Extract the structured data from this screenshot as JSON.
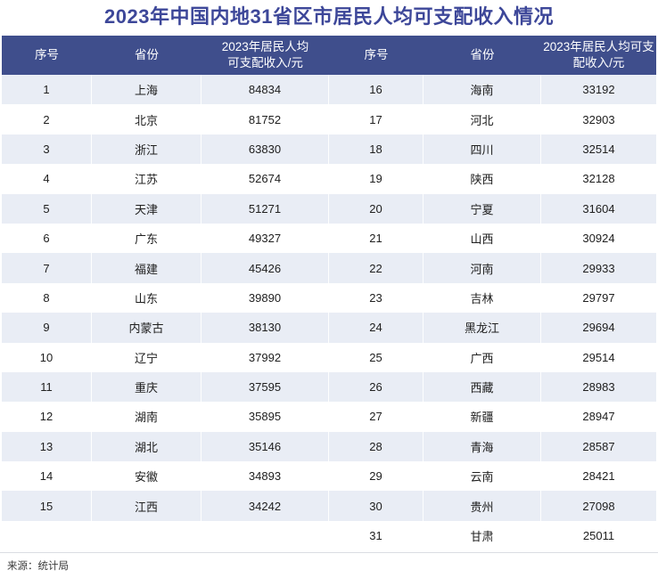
{
  "page": {
    "title": "2023年中国内地31省区市居民人均可支配收入情况"
  },
  "table_headers": {
    "col_rank": "序号",
    "col_province": "省份",
    "col_income_left": "2023年居民人均\n可支配收入/元",
    "col_income_right": "2023年居民人均可支\n配收入/元"
  },
  "footer": {
    "source": "来源：统计局"
  },
  "colors": {
    "title_text": "#3d4799",
    "header_bg": "#3f4e8c",
    "header_text": "#ffffff",
    "row_alt_bg": "#e9edf5",
    "row_bg": "#ffffff",
    "cell_text": "#202020",
    "divider": "#dadde2"
  },
  "chart_data": {
    "type": "table",
    "title": "2023年中国内地31省区市居民人均可支配收入情况",
    "columns": [
      "序号",
      "省份",
      "2023年居民人均可支配收入/元"
    ],
    "layout": "two-column table, ranks 1-15 left, ranks 16-31 right, alternating shaded bands",
    "source": "来源：统计局",
    "records": [
      {
        "rank": "1",
        "province": "上海",
        "income": "84834"
      },
      {
        "rank": "2",
        "province": "北京",
        "income": "81752"
      },
      {
        "rank": "3",
        "province": "浙江",
        "income": "63830"
      },
      {
        "rank": "4",
        "province": "江苏",
        "income": "52674"
      },
      {
        "rank": "5",
        "province": "天津",
        "income": "51271"
      },
      {
        "rank": "6",
        "province": "广东",
        "income": "49327"
      },
      {
        "rank": "7",
        "province": "福建",
        "income": "45426"
      },
      {
        "rank": "8",
        "province": "山东",
        "income": "39890"
      },
      {
        "rank": "9",
        "province": "内蒙古",
        "income": "38130"
      },
      {
        "rank": "10",
        "province": "辽宁",
        "income": "37992"
      },
      {
        "rank": "11",
        "province": "重庆",
        "income": "37595"
      },
      {
        "rank": "12",
        "province": "湖南",
        "income": "35895"
      },
      {
        "rank": "13",
        "province": "湖北",
        "income": "35146"
      },
      {
        "rank": "14",
        "province": "安徽",
        "income": "34893"
      },
      {
        "rank": "15",
        "province": "江西",
        "income": "34242"
      },
      {
        "rank": "16",
        "province": "海南",
        "income": "33192"
      },
      {
        "rank": "17",
        "province": "河北",
        "income": "32903"
      },
      {
        "rank": "18",
        "province": "四川",
        "income": "32514"
      },
      {
        "rank": "19",
        "province": "陕西",
        "income": "32128"
      },
      {
        "rank": "20",
        "province": "宁夏",
        "income": "31604"
      },
      {
        "rank": "21",
        "province": "山西",
        "income": "30924"
      },
      {
        "rank": "22",
        "province": "河南",
        "income": "29933"
      },
      {
        "rank": "23",
        "province": "吉林",
        "income": "29797"
      },
      {
        "rank": "24",
        "province": "黑龙江",
        "income": "29694"
      },
      {
        "rank": "25",
        "province": "广西",
        "income": "29514"
      },
      {
        "rank": "26",
        "province": "西藏",
        "income": "28983"
      },
      {
        "rank": "27",
        "province": "新疆",
        "income": "28947"
      },
      {
        "rank": "28",
        "province": "青海",
        "income": "28587"
      },
      {
        "rank": "29",
        "province": "云南",
        "income": "28421"
      },
      {
        "rank": "30",
        "province": "贵州",
        "income": "27098"
      },
      {
        "rank": "31",
        "province": "甘肃",
        "income": "25011"
      }
    ]
  }
}
